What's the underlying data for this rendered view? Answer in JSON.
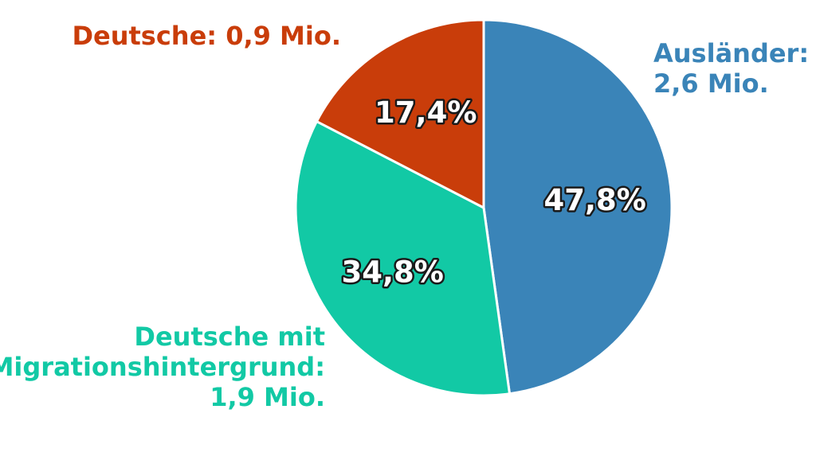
{
  "chart_data": {
    "type": "pie",
    "title": "",
    "slices": [
      {
        "name": "Ausländer",
        "label_lines": [
          "Ausländer:",
          "2,6 Mio."
        ],
        "value": 2.6,
        "percent": 47.8,
        "percent_label": "47,8%",
        "color": "#3a84b8"
      },
      {
        "name": "Deutsche mit Migrationshintergrund",
        "label_lines": [
          "Deutsche mit",
          "Migrationshintergrund:",
          "1,9 Mio."
        ],
        "value": 1.9,
        "percent": 34.8,
        "percent_label": "34,8%",
        "color": "#12c9a5"
      },
      {
        "name": "Deutsche",
        "label_lines": [
          "Deutsche: 0,9 Mio."
        ],
        "value": 0.9,
        "percent": 17.4,
        "percent_label": "17,4%",
        "color": "#c93d0a"
      }
    ],
    "start_angle": "12 o'clock",
    "direction": "clockwise",
    "legend": "none"
  }
}
